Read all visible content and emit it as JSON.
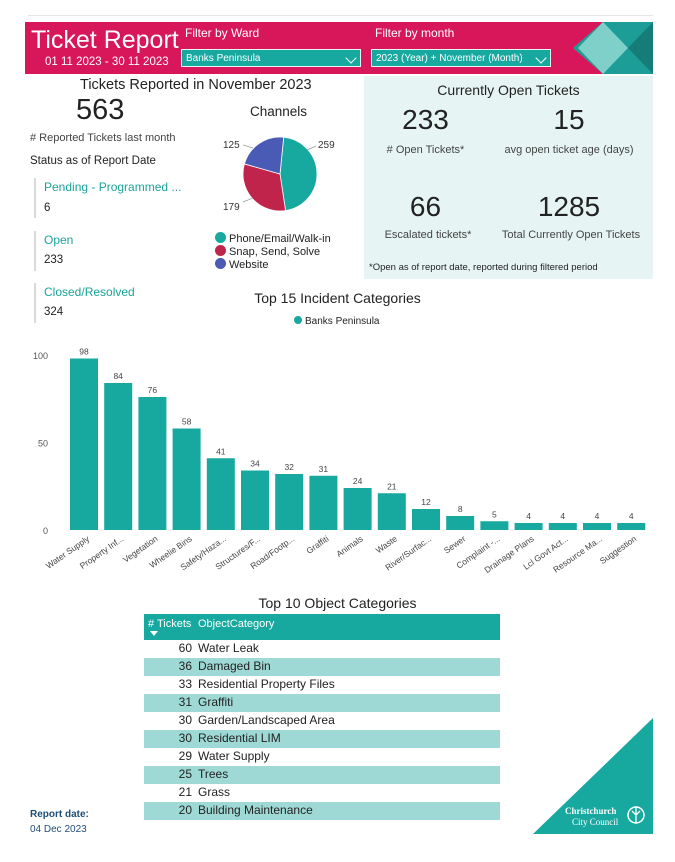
{
  "header": {
    "title": "Ticket Report",
    "date_range": "01 11 2023 - 30 11 2023",
    "filter_ward_label": "Filter by Ward",
    "filter_ward_value": "Banks Peninsula",
    "filter_month_label": "Filter by month",
    "filter_month_value": "2023 (Year) + November (Month)"
  },
  "reported": {
    "heading": "Tickets Reported in November 2023",
    "count": "563",
    "count_label": "# Reported Tickets last month",
    "status_heading": "Status as of Report Date",
    "statuses": [
      {
        "label": "Pending - Programmed ...",
        "value": "6"
      },
      {
        "label": "Open",
        "value": "233"
      },
      {
        "label": "Closed/Resolved",
        "value": "324"
      }
    ]
  },
  "channels": {
    "title": "Channels",
    "slices": [
      {
        "name": "Phone/Email/Walk-in",
        "value": 259,
        "label": "259",
        "color": "#17a99f"
      },
      {
        "name": "Snap, Send, Solve",
        "value": 179,
        "label": "179",
        "color": "#c0244b"
      },
      {
        "name": "Website",
        "value": 125,
        "label": "125",
        "color": "#4a5bb5"
      }
    ]
  },
  "open_tickets": {
    "heading": "Currently Open Tickets",
    "open_count": "233",
    "open_label": "# Open Tickets*",
    "avg_age": "15",
    "avg_age_label": "avg open ticket age (days)",
    "escalated": "66",
    "escalated_label": "Escalated tickets*",
    "total_open": "1285",
    "total_open_label": "Total Currently Open Tickets",
    "footnote": "*Open as of report date, reported during filtered period"
  },
  "chart_data": {
    "type": "bar",
    "title": "Top 15 Incident Categories",
    "legend": "Banks Peninsula",
    "color": "#17a99f",
    "categories": [
      "Water Supply",
      "Property Inf...",
      "Vegetation",
      "Wheelie Bins",
      "Safety/Haza...",
      "Structures/F...",
      "Road/Footp...",
      "Graffiti",
      "Animals",
      "Waste",
      "River/Surfac...",
      "Sewer",
      "Complaint -...",
      "Drainage Plans",
      "Lcl Govt Act...",
      "Resource Ma...",
      "Suggestion"
    ],
    "values": [
      98,
      84,
      76,
      58,
      41,
      34,
      32,
      31,
      24,
      21,
      12,
      8,
      5,
      4,
      4,
      4,
      4
    ],
    "yticks": [
      "0",
      "50",
      "100"
    ],
    "ylim": [
      0,
      100
    ]
  },
  "object_table": {
    "title": "Top 10 Object Categories",
    "col_count": "# Tickets",
    "col_category": "ObjectCategory",
    "rows": [
      {
        "count": "60",
        "category": "Water Leak"
      },
      {
        "count": "36",
        "category": "Damaged Bin"
      },
      {
        "count": "33",
        "category": "Residential Property Files"
      },
      {
        "count": "31",
        "category": "Graffiti"
      },
      {
        "count": "30",
        "category": "Garden/Landscaped Area"
      },
      {
        "count": "30",
        "category": "Residential LIM"
      },
      {
        "count": "29",
        "category": "Water Supply"
      },
      {
        "count": "25",
        "category": "Trees"
      },
      {
        "count": "21",
        "category": "Grass"
      },
      {
        "count": "20",
        "category": "Building Maintenance"
      }
    ]
  },
  "footer": {
    "report_date_label": "Report date:",
    "report_date": "04 Dec 2023",
    "logo_line1": "Christchurch",
    "logo_line2": "City Council"
  }
}
